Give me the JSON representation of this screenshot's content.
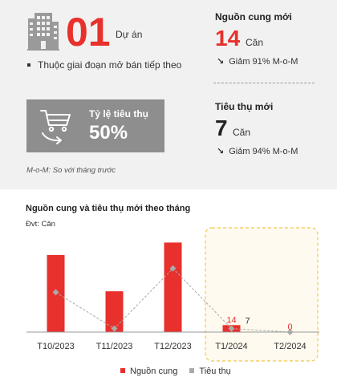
{
  "projects": {
    "count": "01",
    "unit": "Dự án",
    "note": "Thuộc giai đoạn mở bán tiếp theo"
  },
  "absorption": {
    "label": "Tỷ lệ tiêu thụ",
    "value": "50%"
  },
  "footnote": "M-o-M: So với tháng trước",
  "new_supply": {
    "title": "Nguồn cung mới",
    "value": "14",
    "unit": "Căn",
    "change": "Giảm 91% M-o-M"
  },
  "new_sales": {
    "title": "Tiêu thụ mới",
    "value": "7",
    "unit": "Căn",
    "change": "Giảm 94% M-o-M"
  },
  "colors": {
    "accent": "#e8302c",
    "line": "#aaaaaa",
    "highlight_border": "#f2c84b",
    "highlight_fill": "#fffaf0",
    "panel": "#f1f1f1",
    "rate_box": "#8e8e8e"
  },
  "icons": {
    "building": "building-icon",
    "cart": "shopping-cart-icon",
    "trend": "down-right-arrow-icon"
  },
  "chart_data": {
    "type": "bar",
    "title": "Nguồn cung và tiêu thụ mới theo tháng",
    "unit_label": "Đvt: Căn",
    "categories": [
      "T10/2023",
      "T11/2023",
      "T12/2023",
      "T1/2024",
      "T2/2024"
    ],
    "highlighted_categories": [
      "T1/2024",
      "T2/2024"
    ],
    "series": [
      {
        "name": "Nguồn cung",
        "kind": "bar",
        "values": [
          155,
          82,
          180,
          14,
          0
        ],
        "labels": [
          "",
          "",
          "",
          "14",
          "0"
        ]
      },
      {
        "name": "Tiêu thụ",
        "kind": "line",
        "values": [
          80,
          7,
          128,
          7,
          0
        ],
        "labels": [
          "",
          "",
          "",
          "7",
          ""
        ]
      }
    ],
    "ylim": [
      0,
      200
    ],
    "grid": false,
    "legend_position": "bottom"
  }
}
